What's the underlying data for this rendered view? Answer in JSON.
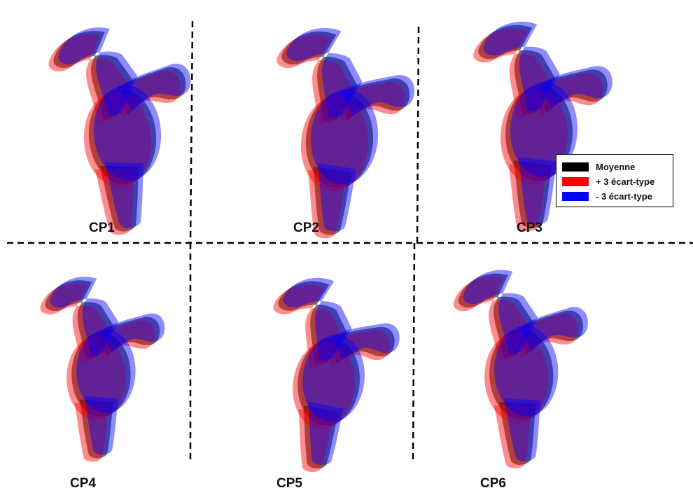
{
  "panels": [
    {
      "label": "CP1"
    },
    {
      "label": "CP2"
    },
    {
      "label": "CP3"
    },
    {
      "label": "CP4"
    },
    {
      "label": "CP5"
    },
    {
      "label": "CP6"
    }
  ],
  "legend": {
    "items": [
      {
        "label": "Moyenne",
        "color": "#000000"
      },
      {
        "label": "+ 3 écart-type",
        "color": "#ff0000"
      },
      {
        "label": "- 3 écart-type",
        "color": "#0000ff"
      }
    ]
  },
  "colors": {
    "mean": "#000000",
    "plus": "#ff0000",
    "minus": "#0000ff",
    "divider": "#000000"
  }
}
